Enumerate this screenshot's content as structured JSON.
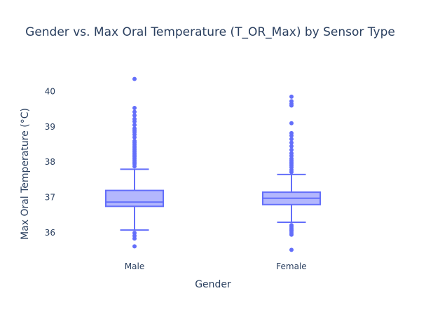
{
  "chart_data": {
    "type": "box",
    "title": "Gender vs. Max Oral Temperature (T_OR_Max) by Sensor Type",
    "xlabel": "Gender",
    "ylabel": "Max Oral Temperature (°C)",
    "categories": [
      "Male",
      "Female"
    ],
    "yticks": [
      "36",
      "37",
      "38",
      "39",
      "40"
    ],
    "ylim": [
      35.35,
      40.6
    ],
    "grid": false,
    "legend": "none",
    "color": "#636efa",
    "fill_color": "#b3b7fd",
    "boxes": [
      {
        "name": "Male",
        "q1": 36.75,
        "median": 36.87,
        "q3": 37.2,
        "whisker_low": 36.08,
        "whisker_high": 37.8,
        "outliers": [
          36.0,
          35.92,
          35.84,
          35.62,
          37.88,
          37.95,
          38.0,
          38.05,
          38.1,
          38.15,
          38.2,
          38.25,
          38.3,
          38.35,
          38.4,
          38.45,
          38.5,
          38.55,
          38.6,
          38.7,
          38.78,
          38.85,
          38.9,
          38.95,
          39.05,
          39.15,
          39.22,
          39.32,
          39.42,
          39.53,
          40.35
        ]
      },
      {
        "name": "Female",
        "q1": 36.8,
        "median": 36.98,
        "q3": 37.15,
        "whisker_low": 36.3,
        "whisker_high": 37.65,
        "outliers": [
          36.22,
          36.17,
          36.12,
          36.08,
          36.05,
          36.0,
          35.95,
          35.52,
          37.72,
          37.78,
          37.85,
          37.9,
          37.95,
          38.0,
          38.05,
          38.1,
          38.18,
          38.25,
          38.35,
          38.45,
          38.55,
          38.65,
          38.75,
          38.82,
          39.1,
          39.6,
          39.65,
          39.72,
          39.85
        ]
      }
    ]
  }
}
